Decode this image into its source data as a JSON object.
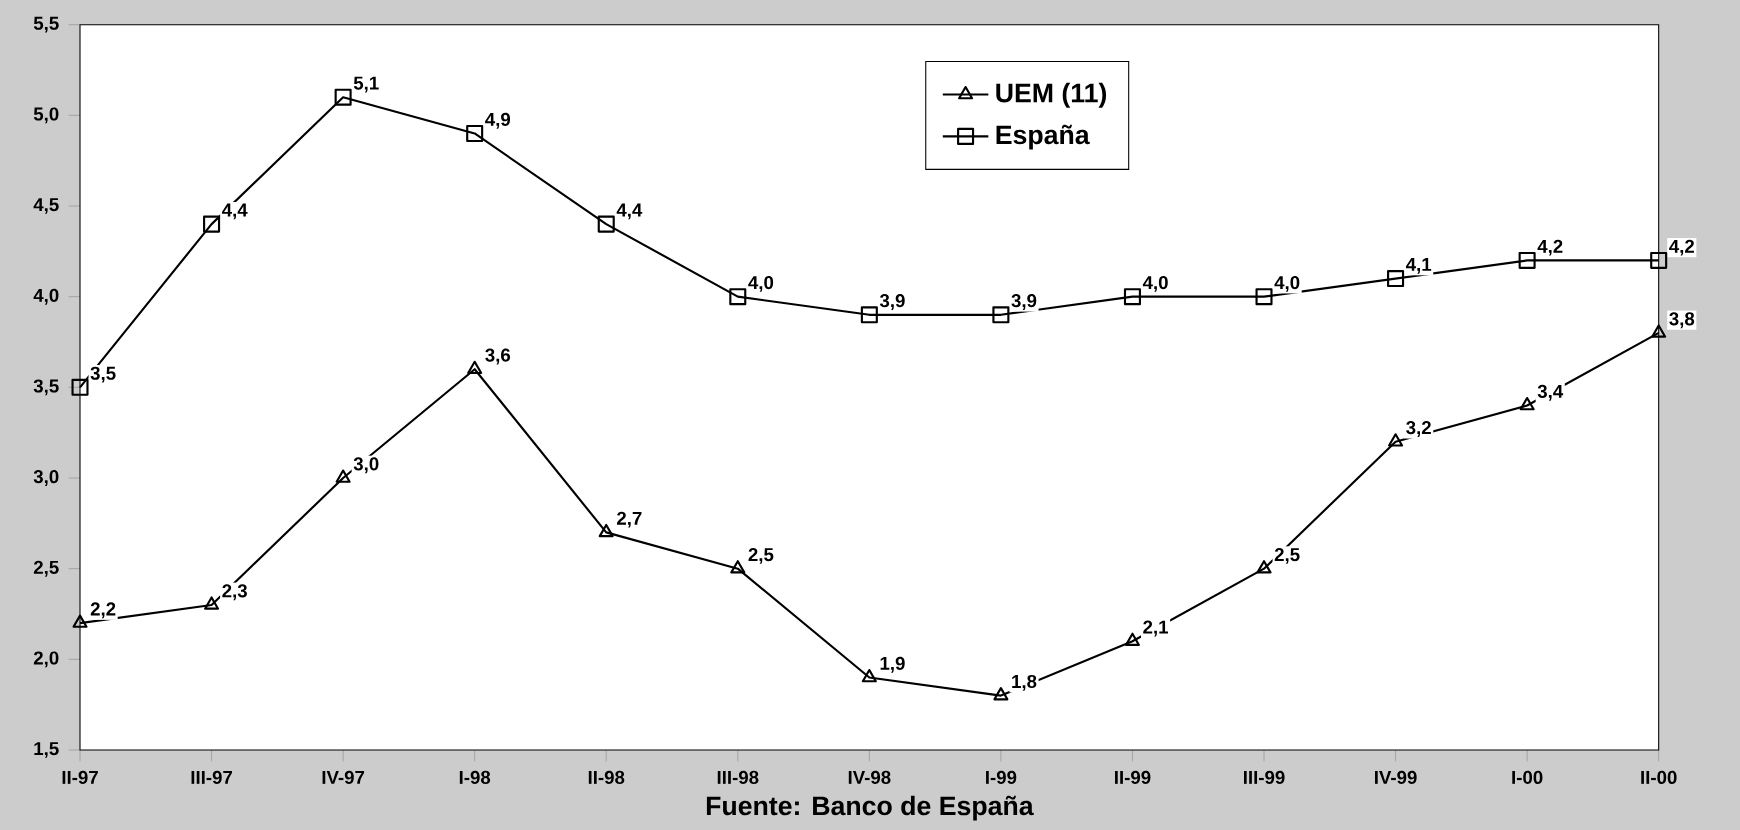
{
  "chart_data": {
    "type": "line",
    "categories": [
      "II-97",
      "III-97",
      "IV-97",
      "I-98",
      "II-98",
      "III-98",
      "IV-98",
      "I-99",
      "II-99",
      "III-99",
      "IV-99",
      "I-00",
      "II-00"
    ],
    "series": [
      {
        "name": "UEM (11)",
        "color": "#000000",
        "marker": "triangle",
        "values": [
          2.2,
          2.3,
          3.0,
          3.6,
          2.7,
          2.5,
          1.9,
          1.8,
          2.1,
          2.5,
          3.2,
          3.4,
          3.8
        ],
        "value_labels": [
          "2,2",
          "2,3",
          "3,0",
          "3,6",
          "2,7",
          "2,5",
          "1,9",
          "1,8",
          "2,1",
          "2,5",
          "3,2",
          "3,4",
          "3,8"
        ]
      },
      {
        "name": "España",
        "color": "#000000",
        "marker": "square",
        "values": [
          3.5,
          4.4,
          5.1,
          4.9,
          4.4,
          4.0,
          3.9,
          3.9,
          4.0,
          4.0,
          4.1,
          4.2,
          4.2
        ],
        "value_labels": [
          "3,5",
          "4,4",
          "5,1",
          "4,9",
          "4,4",
          "4,0",
          "3,9",
          "3,9",
          "4,0",
          "4,0",
          "4,1",
          "4,2",
          "4,2"
        ]
      }
    ],
    "ylim": [
      1.5,
      5.5
    ],
    "yticks": [
      {
        "value": 1.5,
        "label": "1,5"
      },
      {
        "value": 2.0,
        "label": "2,0"
      },
      {
        "value": 2.5,
        "label": "2,5"
      },
      {
        "value": 3.0,
        "label": "3,0"
      },
      {
        "value": 3.5,
        "label": "3,5"
      },
      {
        "value": 4.0,
        "label": "4,0"
      },
      {
        "value": 4.5,
        "label": "4,5"
      },
      {
        "value": 5.0,
        "label": "5,0"
      },
      {
        "value": 5.5,
        "label": "5,5"
      }
    ],
    "grid": false,
    "legend": "top",
    "line_style": "solid",
    "annotations": [
      "Fuente: Banco de España"
    ]
  }
}
